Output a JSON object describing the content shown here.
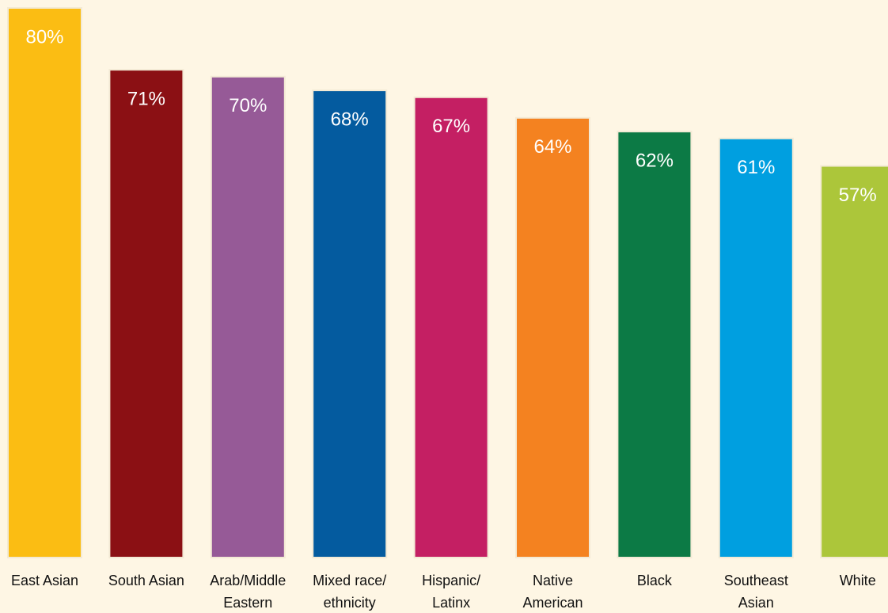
{
  "chart_data": {
    "type": "bar",
    "categories": [
      "East Asian",
      "South Asian",
      "Arab/Middle\nEastern",
      "Mixed race/\nethnicity",
      "Hispanic/\nLatinx",
      "Native\nAmerican",
      "Black",
      "Southeast\nAsian",
      "White"
    ],
    "values": [
      80,
      71,
      70,
      68,
      67,
      64,
      62,
      61,
      57
    ],
    "value_labels": [
      "80%",
      "71%",
      "70%",
      "68%",
      "67%",
      "64%",
      "62%",
      "61%",
      "57%"
    ],
    "colors": [
      "#fbbd13",
      "#8b1014",
      "#965a97",
      "#045b9f",
      "#c41f63",
      "#f48220",
      "#0c7a45",
      "#009fe0",
      "#acc63a"
    ],
    "ylim": [
      0,
      80
    ]
  }
}
